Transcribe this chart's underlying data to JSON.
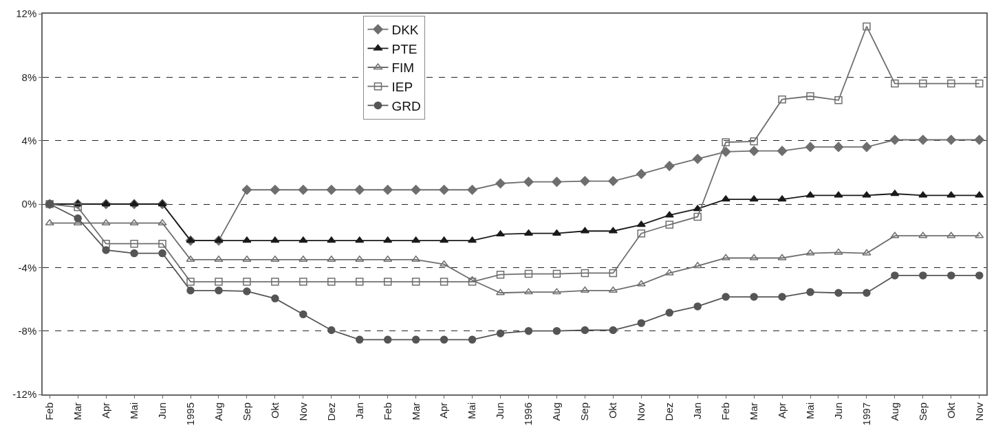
{
  "chart_data": {
    "type": "line",
    "categories": [
      "Feb",
      "Mar",
      "Apr",
      "Mai",
      "Jun",
      "1995",
      "Aug",
      "Sep",
      "Okt",
      "Nov",
      "Dez",
      "Jan",
      "Feb",
      "Mar",
      "Apr",
      "Mai",
      "Jun",
      "1996",
      "Aug",
      "Sep",
      "Okt",
      "Nov",
      "Dez",
      "Jan",
      "Feb",
      "Mar",
      "Apr",
      "Mai",
      "Jun",
      "1997",
      "Aug",
      "Sep",
      "Okt",
      "Nov"
    ],
    "series": [
      {
        "name": "DKK",
        "color": "#6e6e6e",
        "marker": "diamond",
        "values": [
          0,
          0,
          0,
          0,
          0,
          -2.3,
          -2.3,
          0.9,
          0.9,
          0.9,
          0.9,
          0.9,
          0.9,
          0.9,
          0.9,
          0.9,
          1.3,
          1.4,
          1.4,
          1.45,
          1.45,
          1.9,
          2.4,
          2.85,
          3.3,
          3.35,
          3.35,
          3.6,
          3.6,
          3.6,
          4.05,
          4.05,
          4.05,
          4.05
        ]
      },
      {
        "name": "PTE",
        "color": "#1a1a1a",
        "marker": "triangle",
        "values": [
          0,
          0,
          0,
          0,
          0,
          -2.3,
          -2.3,
          -2.3,
          -2.3,
          -2.3,
          -2.3,
          -2.3,
          -2.3,
          -2.3,
          -2.3,
          -2.3,
          -1.9,
          -1.85,
          -1.85,
          -1.7,
          -1.7,
          -1.3,
          -0.7,
          -0.3,
          0.3,
          0.3,
          0.3,
          0.55,
          0.55,
          0.55,
          0.65,
          0.55,
          0.55,
          0.55
        ]
      },
      {
        "name": "FIM",
        "color": "#6e6e6e",
        "marker": "triangle-open",
        "values": [
          -1.2,
          -1.2,
          -1.2,
          -1.2,
          -1.2,
          -3.5,
          -3.5,
          -3.5,
          -3.5,
          -3.5,
          -3.5,
          -3.5,
          -3.5,
          -3.5,
          -3.8,
          -4.8,
          -5.6,
          -5.55,
          -5.55,
          -5.45,
          -5.45,
          -5.05,
          -4.35,
          -3.9,
          -3.4,
          -3.4,
          -3.4,
          -3.1,
          -3.05,
          -3.1,
          -2.0,
          -2.0,
          -2.0,
          -2.0
        ]
      },
      {
        "name": "IEP",
        "color": "#6e6e6e",
        "marker": "square-open",
        "values": [
          0,
          -0.2,
          -2.5,
          -2.5,
          -2.5,
          -4.9,
          -4.9,
          -4.9,
          -4.9,
          -4.9,
          -4.9,
          -4.9,
          -4.9,
          -4.9,
          -4.9,
          -4.9,
          -4.45,
          -4.4,
          -4.4,
          -4.35,
          -4.35,
          -1.85,
          -1.3,
          -0.8,
          3.9,
          3.95,
          6.6,
          6.8,
          6.55,
          11.2,
          7.6,
          7.6,
          7.6,
          7.6
        ]
      },
      {
        "name": "GRD",
        "color": "#555555",
        "marker": "circle",
        "values": [
          0,
          -0.9,
          -2.9,
          -3.1,
          -3.1,
          -5.45,
          -5.45,
          -5.5,
          -5.95,
          -6.95,
          -7.95,
          -8.55,
          -8.55,
          -8.55,
          -8.55,
          -8.55,
          -8.15,
          -8.0,
          -8.0,
          -7.95,
          -7.95,
          -7.5,
          -6.85,
          -6.45,
          -5.85,
          -5.85,
          -5.85,
          -5.55,
          -5.6,
          -5.6,
          -4.5,
          -4.5,
          -4.5,
          -4.5
        ]
      }
    ],
    "ylim": [
      -12,
      12
    ],
    "yticks": [
      {
        "value": -12,
        "label": "-12%"
      },
      {
        "value": -8,
        "label": "-8%"
      },
      {
        "value": -4,
        "label": "-4%"
      },
      {
        "value": 0,
        "label": "0%"
      },
      {
        "value": 4,
        "label": "4%"
      },
      {
        "value": 8,
        "label": "8%"
      },
      {
        "value": 12,
        "label": "12%"
      }
    ],
    "grid": "y",
    "legend": "top",
    "line_style": "solid"
  }
}
